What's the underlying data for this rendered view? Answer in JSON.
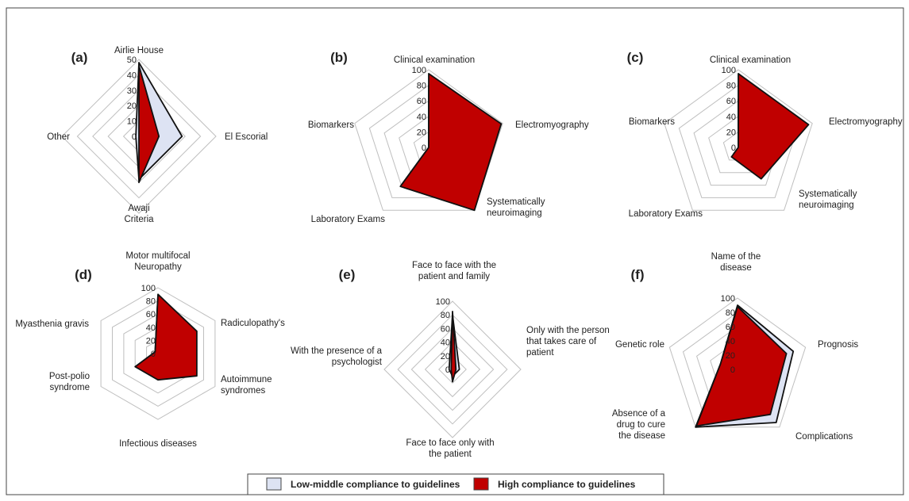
{
  "colors": {
    "low": "#dde3f3",
    "high": "#c00000",
    "outline": "#111111",
    "grid": "#bfbfbf"
  },
  "legend": {
    "low_label": "Low-middle compliance to guidelines",
    "high_label": "High compliance to guidelines"
  },
  "chart_data": [
    {
      "type": "radar",
      "panel": "(a)",
      "max": 50,
      "ticks": [
        "0",
        "10",
        "20",
        "30",
        "40",
        "50"
      ],
      "axes": [
        [
          "Airlie House"
        ],
        [
          "El Escorial"
        ],
        [
          "Awaji",
          "Criteria"
        ],
        [
          "Other"
        ]
      ],
      "series": [
        {
          "name": "Low-middle compliance to guidelines",
          "values": [
            48,
            28,
            28,
            2
          ]
        },
        {
          "name": "High compliance to guidelines",
          "values": [
            46,
            13,
            30,
            0
          ]
        }
      ]
    },
    {
      "type": "radar",
      "panel": "(b)",
      "max": 100,
      "ticks": [
        "0",
        "20",
        "40",
        "60",
        "80",
        "100"
      ],
      "axes": [
        [
          "Clinical examination"
        ],
        [
          "Electromyography"
        ],
        [
          "Systematically",
          "neuroimaging"
        ],
        [
          "Laboratory Exams"
        ],
        [
          "Biomarkers"
        ]
      ],
      "series": [
        {
          "name": "Low-middle compliance to guidelines",
          "values": [
            80,
            98,
            92,
            60,
            0
          ]
        },
        {
          "name": "High compliance to guidelines",
          "values": [
            95,
            98,
            100,
            62,
            0
          ]
        }
      ]
    },
    {
      "type": "radar",
      "panel": "(c)",
      "max": 100,
      "ticks": [
        "0",
        "20",
        "40",
        "60",
        "80",
        "100"
      ],
      "axes": [
        [
          "Clinical examination"
        ],
        [
          "Electromyography"
        ],
        [
          "Systematically",
          "neuroimaging"
        ],
        [
          "Laboratory Exams"
        ],
        [
          "Biomarkers"
        ]
      ],
      "series": [
        {
          "name": "Low-middle compliance to guidelines",
          "values": [
            62,
            88,
            15,
            10,
            0
          ]
        },
        {
          "name": "High compliance to guidelines",
          "values": [
            95,
            95,
            50,
            15,
            0
          ]
        }
      ]
    },
    {
      "type": "radar",
      "panel": "(d)",
      "max": 100,
      "ticks": [
        "0",
        "20",
        "40",
        "60",
        "80",
        "100"
      ],
      "axes": [
        [
          "Motor multifocal",
          "Neuropathy"
        ],
        [
          "Radiculopathy's"
        ],
        [
          "Autoimmune",
          "syndromes"
        ],
        [
          "Infectious diseases"
        ],
        [
          "Post-polio",
          "syndrome"
        ],
        [
          "Myasthenia gravis"
        ]
      ],
      "series": [
        {
          "name": "Low-middle compliance to guidelines",
          "values": [
            88,
            55,
            55,
            36,
            38,
            5
          ]
        },
        {
          "name": "High compliance to guidelines",
          "values": [
            90,
            68,
            68,
            40,
            40,
            5
          ]
        }
      ]
    },
    {
      "type": "radar",
      "panel": "(e)",
      "max": 100,
      "ticks": [
        "0",
        "20",
        "40",
        "60",
        "80",
        "100"
      ],
      "axes": [
        [
          "Face to face with the",
          "patient and family"
        ],
        [
          "Only with the person",
          "that takes care of",
          "patient"
        ],
        [
          "Face to face only with",
          "the patient"
        ],
        [
          "With the presence of a",
          "psychologist"
        ]
      ],
      "series": [
        {
          "name": "Low-middle compliance to guidelines",
          "values": [
            80,
            10,
            10,
            5
          ]
        },
        {
          "name": "High compliance to guidelines",
          "values": [
            85,
            5,
            18,
            2
          ]
        }
      ]
    },
    {
      "type": "radar",
      "panel": "(f)",
      "max": 100,
      "ticks": [
        "0",
        "20",
        "40",
        "60",
        "80",
        "100"
      ],
      "axes": [
        [
          "Name of the",
          "disease"
        ],
        [
          "Prognosis"
        ],
        [
          "Complications"
        ],
        [
          "Absence of a",
          "drug to cure",
          "the disease"
        ],
        [
          "Genetic role"
        ]
      ],
      "series": [
        {
          "name": "Low-middle compliance to guidelines",
          "values": [
            90,
            82,
            92,
            100,
            25
          ]
        },
        {
          "name": "High compliance to guidelines",
          "values": [
            88,
            72,
            78,
            98,
            25
          ]
        }
      ]
    }
  ]
}
